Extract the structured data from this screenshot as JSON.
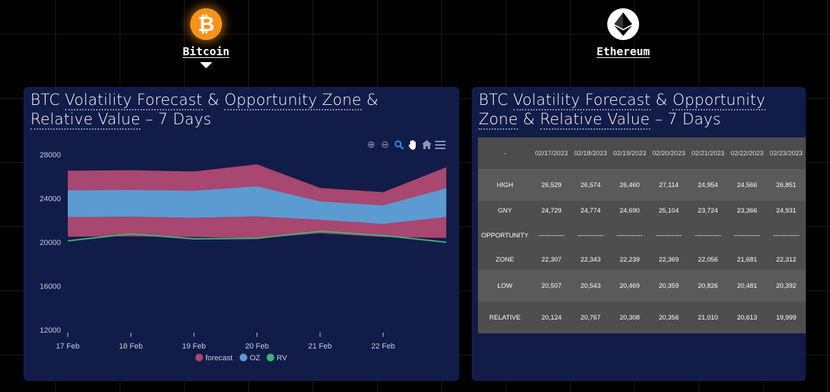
{
  "coins": {
    "btc": {
      "label": "Bitcoin",
      "symbol": "₿",
      "icon": "bitcoin-icon",
      "selected": true
    },
    "eth": {
      "label": "Ethereum",
      "icon": "ethereum-icon"
    }
  },
  "left_panel": {
    "title_parts": [
      "BTC ",
      "Volatility Forecast",
      " & ",
      "Opportunity Zone",
      " & ",
      "Relative Value",
      " – 7 Days"
    ],
    "toolbar": [
      "zoom-in-icon",
      "zoom-out-icon",
      "zoom-select-icon",
      "pan-hand-icon",
      "home-reset-icon",
      "menu-icon"
    ]
  },
  "right_panel": {
    "title_parts": [
      "BTC ",
      "Volatility Forecast",
      " & ",
      "Opportunity",
      " ",
      "Zone",
      " & ",
      "Relative Value",
      " – 7 Days"
    ],
    "table": {
      "header_label": "-",
      "dates": [
        "02/17/2023",
        "02/18/2023",
        "02/19/2023",
        "02/20/2023",
        "02/21/2023",
        "02/22/2023",
        "02/23/2023"
      ],
      "high": {
        "label": "HIGH",
        "values": [
          "26,529",
          "26,574",
          "26,460",
          "27,114",
          "24,954",
          "24,566",
          "26,851"
        ]
      },
      "gny": {
        "label": "GNY",
        "values": [
          "24,729",
          "24,774",
          "24,690",
          "25,104",
          "23,724",
          "23,366",
          "24,931"
        ]
      },
      "opportunity": {
        "label": "OPPORTUNITY",
        "sep": "------------"
      },
      "zone": {
        "label": "ZONE",
        "values": [
          "22,307",
          "22,343",
          "22,239",
          "22,369",
          "22,056",
          "21,681",
          "22,312"
        ]
      },
      "low": {
        "label": "LOW",
        "values": [
          "20,507",
          "20,543",
          "20,469",
          "20,359",
          "20,826",
          "20,481",
          "20,392"
        ]
      },
      "relative": {
        "label": "RELATIVE",
        "values": [
          "20,124",
          "20,767",
          "20,308",
          "20,356",
          "21,010",
          "20,613",
          "19,999"
        ]
      }
    }
  },
  "colors": {
    "forecast": "#a8476f",
    "oz": "#5b9bd1",
    "rv": "#3fb47a",
    "panel": "#121c48"
  },
  "chart_data": {
    "type": "area",
    "x": [
      "17 Feb",
      "18 Feb",
      "19 Feb",
      "20 Feb",
      "21 Feb",
      "22 Feb",
      "23 Feb"
    ],
    "x_tick_labels": [
      "17 Feb",
      "18 Feb",
      "19 Feb",
      "20 Feb",
      "21 Feb",
      "22 Feb"
    ],
    "y_ticks": [
      12000,
      16000,
      20000,
      24000,
      28000
    ],
    "ylim": [
      12000,
      28000
    ],
    "series": [
      {
        "name": "forecast",
        "type": "range",
        "low": [
          20507,
          20543,
          20469,
          20359,
          20826,
          20481,
          20392
        ],
        "high": [
          26529,
          26574,
          26460,
          27114,
          24954,
          24566,
          26851
        ]
      },
      {
        "name": "OZ",
        "type": "range",
        "low": [
          22307,
          22343,
          22239,
          22369,
          22056,
          21681,
          22312
        ],
        "high": [
          24729,
          24774,
          24690,
          25104,
          23724,
          23366,
          24931
        ]
      },
      {
        "name": "RV",
        "type": "line",
        "values": [
          20124,
          20767,
          20308,
          20356,
          21010,
          20613,
          19999
        ]
      }
    ],
    "legend": [
      "forecast",
      "OZ",
      "RV"
    ],
    "legend_position": "bottom-center",
    "grid": false
  }
}
